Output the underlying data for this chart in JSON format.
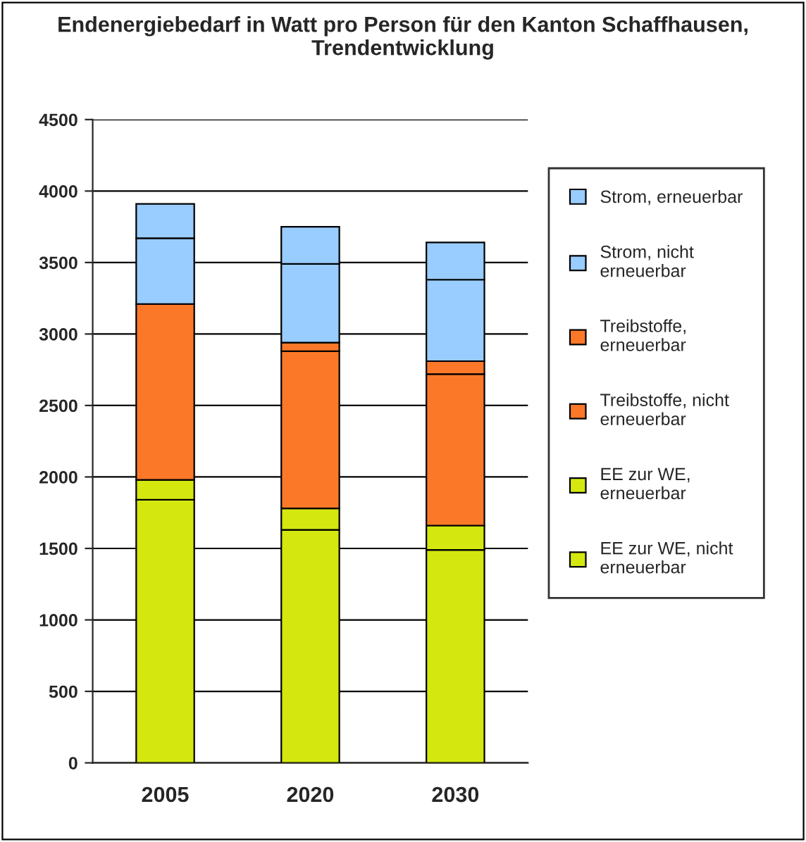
{
  "chart_data": {
    "type": "bar",
    "title": "Endenergiebedarf in Watt pro Person für den Kanton Schaffhausen, Trendentwicklung",
    "stacked": true,
    "categories": [
      "2005",
      "2020",
      "2030"
    ],
    "series": [
      {
        "name": "EE zur WE, nicht erneuerbar",
        "color": "#d4e80f",
        "values": [
          1840,
          1630,
          1490
        ]
      },
      {
        "name": "EE zur WE, erneuerbar",
        "color": "#d4e80f",
        "values": [
          140,
          150,
          170
        ]
      },
      {
        "name": "Treibstoffe, nicht erneuerbar",
        "color": "#fa7828",
        "values": [
          1230,
          1100,
          1060
        ]
      },
      {
        "name": "Treibstoffe, erneuerbar",
        "color": "#fa7828",
        "values": [
          0,
          60,
          90
        ]
      },
      {
        "name": "Strom, nicht erneuerbar",
        "color": "#99ccff",
        "values": [
          460,
          550,
          570
        ]
      },
      {
        "name": "Strom, erneuerbar",
        "color": "#99ccff",
        "values": [
          240,
          260,
          260
        ]
      }
    ],
    "ylim": [
      0,
      4500
    ],
    "yticks": [
      0,
      500,
      1000,
      1500,
      2000,
      2500,
      3000,
      3500,
      4000,
      4500
    ],
    "grid": "y",
    "legend": "right"
  }
}
